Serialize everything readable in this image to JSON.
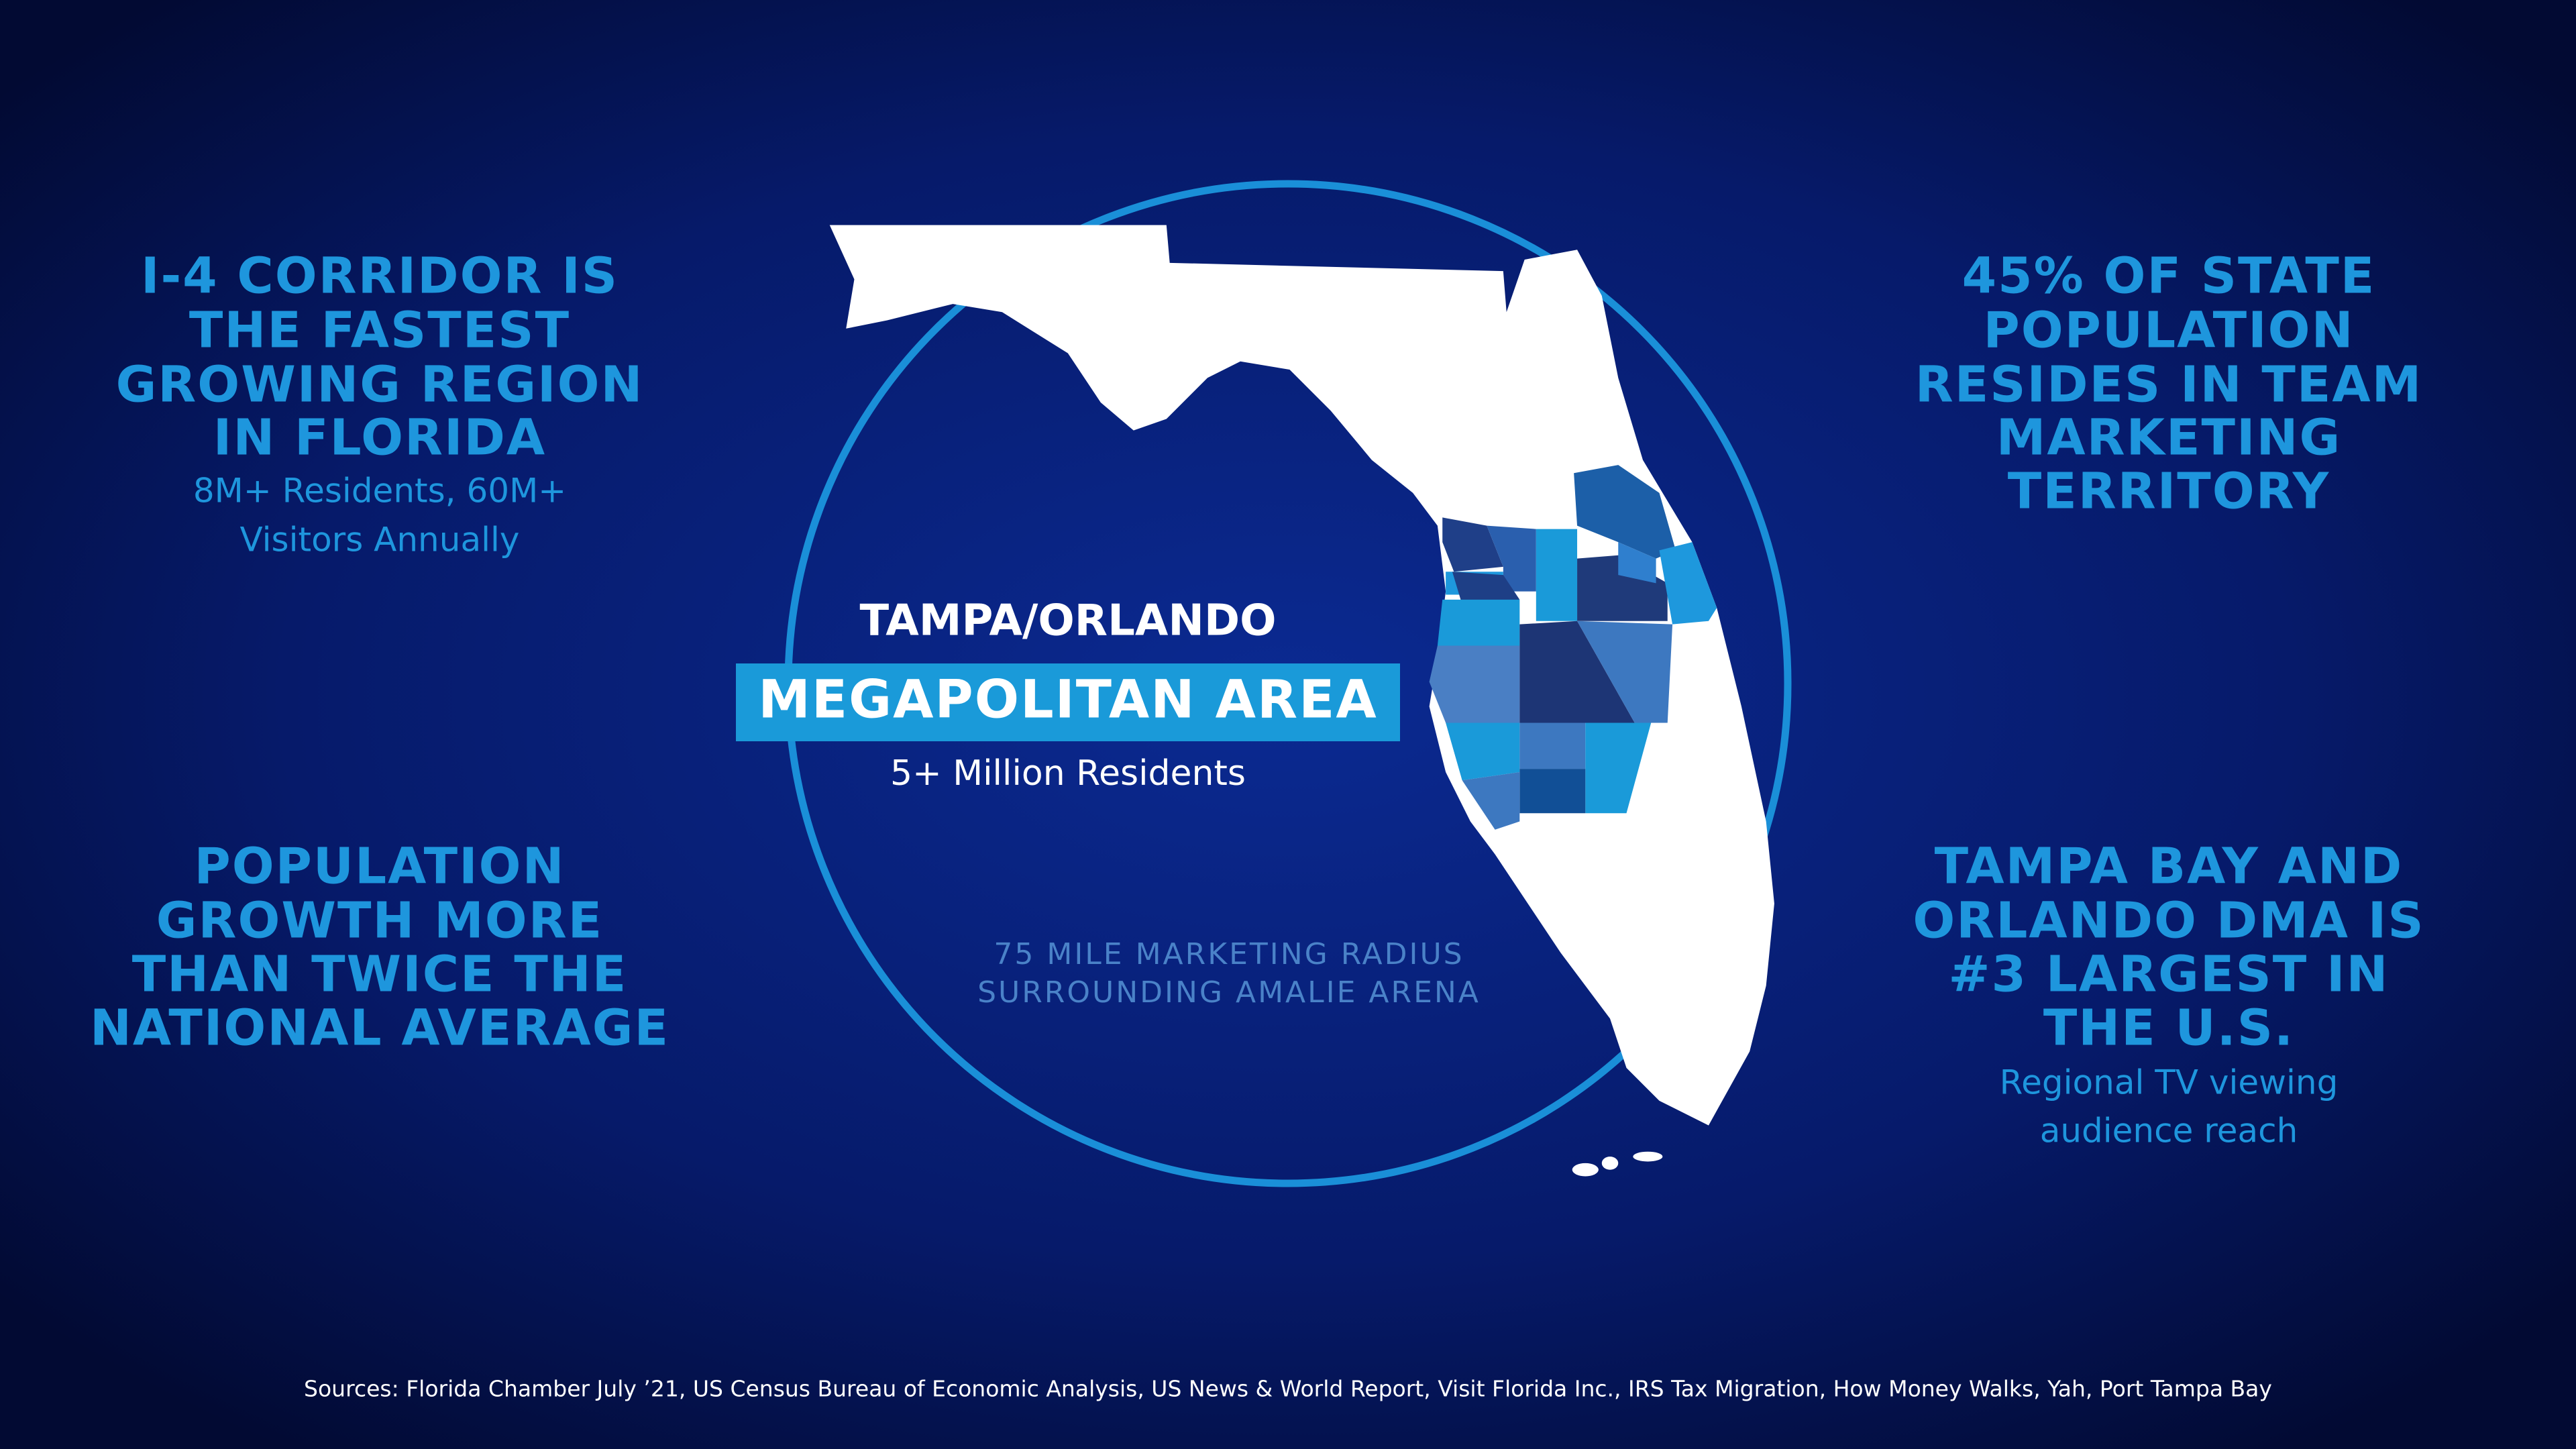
{
  "left_blocks": [
    {
      "headline_lines": [
        "I-4 CORRIDOR IS",
        "THE FASTEST",
        "GROWING REGION",
        "IN FLORIDA"
      ],
      "sub_lines": [
        "8M+ Residents, 60M+",
        "Visitors Annually"
      ]
    },
    {
      "headline_lines": [
        "POPULATION",
        "GROWTH MORE",
        "THAN TWICE THE",
        "NATIONAL AVERAGE"
      ]
    }
  ],
  "right_blocks": [
    {
      "headline_lines": [
        "45% OF STATE",
        "POPULATION",
        "RESIDES IN TEAM",
        "MARKETING",
        "TERRITORY"
      ]
    },
    {
      "headline_lines": [
        "TAMPA BAY AND",
        "ORLANDO DMA IS",
        "#3 LARGEST IN",
        "THE U.S."
      ],
      "sub_lines": [
        "Regional TV viewing",
        "audience reach"
      ]
    }
  ],
  "center": {
    "title": "TAMPA/ORLANDO",
    "highlight": "MEGAPOLITAN AREA",
    "subtitle": "5+ Million Residents",
    "radius_note_lines": [
      "75 MILE MARKETING RADIUS",
      "SURROUNDING AMALIE ARENA"
    ]
  },
  "footer": {
    "sources": "Sources: Florida Chamber July ’21, US Census Bureau of Economic Analysis, US News & World Report, Visit Florida Inc., IRS Tax Migration, How Money Walks, Yah, Port Tampa Bay"
  }
}
